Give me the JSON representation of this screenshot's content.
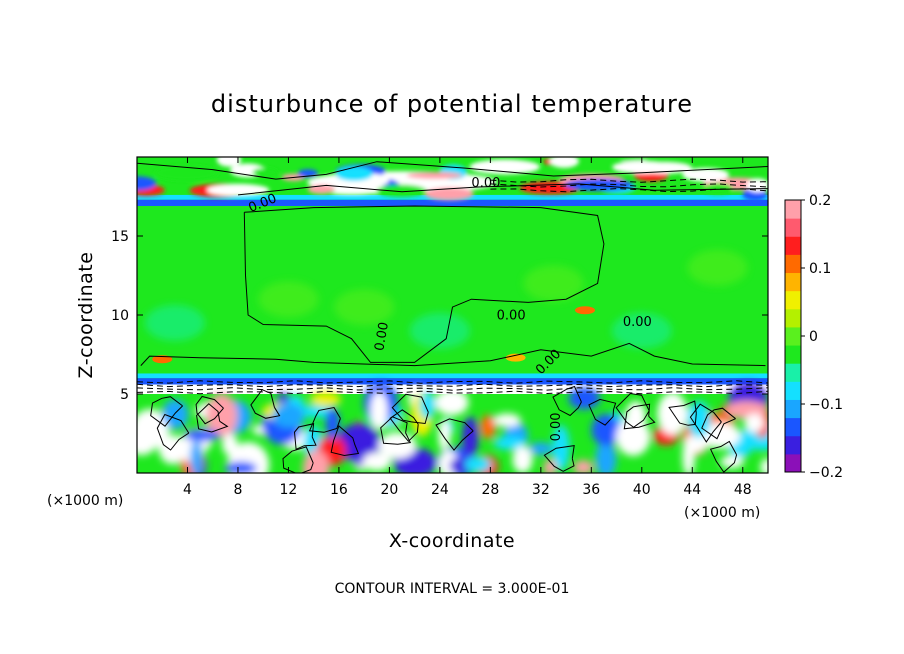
{
  "chart_data": {
    "type": "heatmap",
    "title": "disturbunce of potential temperature",
    "xlabel": "X-coordinate",
    "ylabel": "Z-coordinate",
    "x_unit": "(×1000 m)",
    "x_ticks": [
      4,
      8,
      12,
      16,
      20,
      24,
      28,
      32,
      36,
      40,
      44,
      48
    ],
    "y_ticks": [
      5,
      10,
      15
    ],
    "xlim": [
      0,
      50
    ],
    "ylim": [
      0,
      20
    ],
    "colorbar": {
      "ticks": [
        0.2,
        0.1,
        0,
        -0.1,
        -0.2
      ],
      "tick_labels": [
        "0.2",
        "0.1",
        "0",
        "−0.1",
        "−0.2"
      ],
      "range": [
        -0.2,
        0.2
      ],
      "colors": [
        "#8b10b8",
        "#3a1fe0",
        "#1a56ff",
        "#1aa6ff",
        "#14e0ff",
        "#19f0a8",
        "#1ee81e",
        "#5af01e",
        "#b4f000",
        "#f0f000",
        "#ffb400",
        "#ff6a00",
        "#ff1e1e",
        "#ff5a6e",
        "#ffa0aa"
      ]
    },
    "contour_labels": [
      "0.00",
      "0.00",
      "0.00",
      "0.00",
      "0.00",
      "0.00",
      "0.00"
    ],
    "footnote": "CONTOUR INTERVAL = 3.000E-01"
  }
}
